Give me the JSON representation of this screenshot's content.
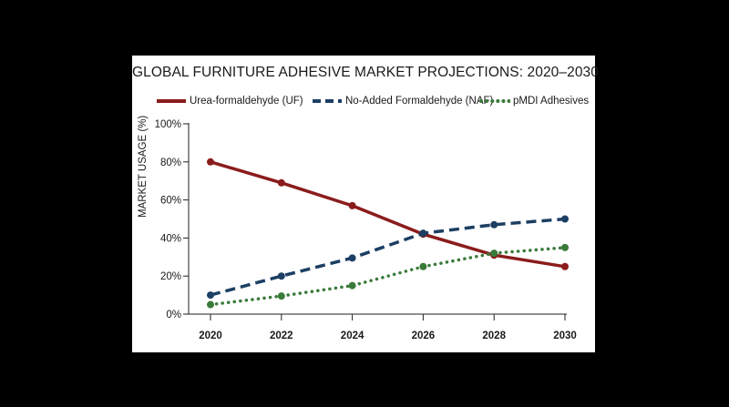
{
  "chart_data": {
    "type": "line",
    "title": "GLOBAL FURNITURE ADHESIVE MARKET PROJECTIONS: 2020–2030",
    "xlabel": "",
    "ylabel": "MARKET USAGE (%)",
    "x": [
      2020,
      2022,
      2024,
      2026,
      2028,
      2030
    ],
    "x_tick_labels": [
      "2020",
      "2022",
      "2024",
      "2026",
      "2028",
      "2030"
    ],
    "ylim": [
      0,
      100
    ],
    "y_ticks": [
      0,
      20,
      40,
      60,
      80,
      100
    ],
    "y_tick_labels": [
      "0%",
      "20%",
      "40%",
      "60%",
      "80%",
      "100%"
    ],
    "grid": false,
    "legend_position": "top",
    "series": [
      {
        "name": "Urea-formaldehyde (UF)",
        "values": [
          80,
          69,
          57,
          42,
          31,
          25
        ],
        "color": "#8b1c1c",
        "style": "solid"
      },
      {
        "name": "No-Added Formaldehyde (NAF)",
        "values": [
          10,
          20,
          29.5,
          42.5,
          47,
          50
        ],
        "color": "#1c3f63",
        "style": "dashed"
      },
      {
        "name": "pMDI Adhesives",
        "values": [
          5,
          9.5,
          15,
          25,
          32,
          35
        ],
        "color": "#3a7a3a",
        "style": "dotted"
      }
    ]
  }
}
